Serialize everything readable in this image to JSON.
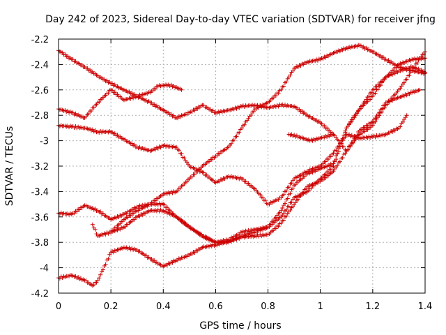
{
  "chart_data": {
    "type": "scatter",
    "title": "Day 242 of 2023, Sidereal Day-to-day VTEC variation (SDTVAR) for receiver jfng",
    "xlabel": "GPS time / hours",
    "ylabel": "SDTVAR / TECUs",
    "xlim": [
      0,
      1.4
    ],
    "ylim": [
      -4.2,
      -2.2
    ],
    "x_ticks": [
      0,
      0.2,
      0.4,
      0.6,
      0.8,
      1,
      1.2,
      1.4
    ],
    "x_tick_labels": [
      "0",
      "0.2",
      "0.4",
      "0.6",
      "0.8",
      "1",
      "1.2",
      "1.4"
    ],
    "y_ticks": [
      -4.2,
      -4,
      -3.8,
      -3.6,
      -3.4,
      -3.2,
      -3,
      -2.8,
      -2.6,
      -2.4,
      -2.2
    ],
    "y_tick_labels": [
      "-4.2",
      "-4",
      "-3.8",
      "-3.6",
      "-3.4",
      "-3.2",
      "-3",
      "-2.8",
      "-2.6",
      "-2.4",
      "-2.2"
    ],
    "grid": true,
    "marker": "+",
    "marker_color": "#cc0000",
    "series": [
      {
        "values": [
          [
            0,
            -2.29
          ],
          [
            0.05,
            -2.36
          ],
          [
            0.1,
            -2.42
          ],
          [
            0.15,
            -2.49
          ],
          [
            0.2,
            -2.55
          ],
          [
            0.25,
            -2.6
          ],
          [
            0.3,
            -2.65
          ],
          [
            0.35,
            -2.7
          ],
          [
            0.4,
            -2.76
          ],
          [
            0.45,
            -2.82
          ],
          [
            0.5,
            -2.78
          ],
          [
            0.55,
            -2.72
          ],
          [
            0.6,
            -2.78
          ],
          [
            0.65,
            -2.76
          ],
          [
            0.7,
            -2.73
          ],
          [
            0.75,
            -2.72
          ],
          [
            0.8,
            -2.74
          ],
          [
            0.85,
            -2.72
          ],
          [
            0.9,
            -2.73
          ],
          [
            0.95,
            -2.8
          ],
          [
            1.0,
            -2.86
          ],
          [
            1.05,
            -2.95
          ],
          [
            1.1,
            -3.08
          ],
          [
            1.15,
            -2.95
          ],
          [
            1.2,
            -2.88
          ],
          [
            1.25,
            -2.72
          ],
          [
            1.3,
            -2.6
          ],
          [
            1.35,
            -2.45
          ],
          [
            1.38,
            -2.35
          ],
          [
            1.4,
            -2.3
          ]
        ]
      },
      {
        "values": [
          [
            0.0,
            -2.75
          ],
          [
            0.05,
            -2.78
          ],
          [
            0.1,
            -2.82
          ],
          [
            0.15,
            -2.7
          ],
          [
            0.2,
            -2.6
          ],
          [
            0.25,
            -2.68
          ],
          [
            0.3,
            -2.65
          ],
          [
            0.35,
            -2.62
          ],
          [
            0.38,
            -2.57
          ],
          [
            0.42,
            -2.56
          ],
          [
            0.45,
            -2.58
          ],
          [
            0.47,
            -2.6
          ]
        ]
      },
      {
        "values": [
          [
            0.0,
            -2.88
          ],
          [
            0.05,
            -2.89
          ],
          [
            0.1,
            -2.9
          ],
          [
            0.15,
            -2.93
          ],
          [
            0.2,
            -2.93
          ],
          [
            0.25,
            -2.99
          ],
          [
            0.3,
            -3.05
          ],
          [
            0.35,
            -3.08
          ],
          [
            0.4,
            -3.04
          ],
          [
            0.45,
            -3.05
          ],
          [
            0.5,
            -3.2
          ],
          [
            0.55,
            -3.25
          ],
          [
            0.6,
            -3.33
          ],
          [
            0.65,
            -3.28
          ],
          [
            0.7,
            -3.3
          ],
          [
            0.75,
            -3.38
          ],
          [
            0.8,
            -3.5
          ],
          [
            0.85,
            -3.45
          ],
          [
            0.9,
            -3.3
          ],
          [
            0.95,
            -3.24
          ],
          [
            1.0,
            -3.2
          ],
          [
            1.05,
            -3.1
          ],
          [
            1.1,
            -2.95
          ],
          [
            1.15,
            -2.98
          ],
          [
            1.2,
            -2.97
          ],
          [
            1.25,
            -2.95
          ],
          [
            1.3,
            -2.9
          ],
          [
            1.33,
            -2.8
          ]
        ]
      },
      {
        "values": [
          [
            0.0,
            -3.57
          ],
          [
            0.05,
            -3.58
          ],
          [
            0.1,
            -3.51
          ],
          [
            0.15,
            -3.55
          ],
          [
            0.2,
            -3.62
          ],
          [
            0.25,
            -3.58
          ],
          [
            0.3,
            -3.52
          ],
          [
            0.35,
            -3.5
          ],
          [
            0.4,
            -3.5
          ],
          [
            0.45,
            -3.6
          ],
          [
            0.5,
            -3.68
          ],
          [
            0.55,
            -3.75
          ],
          [
            0.6,
            -3.8
          ],
          [
            0.65,
            -3.78
          ],
          [
            0.7,
            -3.72
          ],
          [
            0.75,
            -3.7
          ],
          [
            0.8,
            -3.68
          ],
          [
            0.85,
            -3.6
          ],
          [
            0.9,
            -3.45
          ],
          [
            0.95,
            -3.4
          ],
          [
            1.0,
            -3.3
          ],
          [
            1.05,
            -3.2
          ],
          [
            1.1,
            -2.9
          ],
          [
            1.15,
            -2.75
          ],
          [
            1.2,
            -2.65
          ],
          [
            1.25,
            -2.5
          ],
          [
            1.3,
            -2.45
          ],
          [
            1.35,
            -2.42
          ],
          [
            1.4,
            -2.46
          ]
        ]
      },
      {
        "values": [
          [
            0.0,
            -4.08
          ],
          [
            0.05,
            -4.06
          ],
          [
            0.1,
            -4.1
          ],
          [
            0.13,
            -4.14
          ],
          [
            0.15,
            -4.1
          ],
          [
            0.2,
            -3.88
          ],
          [
            0.25,
            -3.84
          ],
          [
            0.3,
            -3.86
          ],
          [
            0.35,
            -3.93
          ],
          [
            0.4,
            -3.99
          ],
          [
            0.45,
            -3.94
          ],
          [
            0.5,
            -3.9
          ],
          [
            0.55,
            -3.84
          ],
          [
            0.6,
            -3.82
          ],
          [
            0.65,
            -3.79
          ],
          [
            0.7,
            -3.76
          ],
          [
            0.75,
            -3.75
          ],
          [
            0.8,
            -3.74
          ],
          [
            0.85,
            -3.65
          ],
          [
            0.9,
            -3.5
          ],
          [
            0.95,
            -3.36
          ],
          [
            1.0,
            -3.32
          ],
          [
            1.05,
            -3.24
          ],
          [
            1.1,
            -3.08
          ],
          [
            1.15,
            -2.92
          ],
          [
            1.2,
            -2.85
          ],
          [
            1.25,
            -2.7
          ],
          [
            1.3,
            -2.66
          ],
          [
            1.35,
            -2.62
          ],
          [
            1.38,
            -2.6
          ]
        ]
      },
      {
        "values": [
          [
            0.13,
            -3.66
          ],
          [
            0.15,
            -3.75
          ],
          [
            0.2,
            -3.72
          ],
          [
            0.25,
            -3.62
          ],
          [
            0.3,
            -3.55
          ],
          [
            0.35,
            -3.5
          ],
          [
            0.4,
            -3.42
          ],
          [
            0.45,
            -3.4
          ],
          [
            0.5,
            -3.3
          ],
          [
            0.55,
            -3.2
          ],
          [
            0.6,
            -3.12
          ],
          [
            0.65,
            -3.05
          ],
          [
            0.7,
            -2.9
          ],
          [
            0.75,
            -2.75
          ],
          [
            0.8,
            -2.7
          ],
          [
            0.85,
            -2.6
          ],
          [
            0.9,
            -2.43
          ],
          [
            0.95,
            -2.38
          ],
          [
            1.0,
            -2.36
          ],
          [
            1.05,
            -2.31
          ],
          [
            1.1,
            -2.27
          ],
          [
            1.15,
            -2.25
          ],
          [
            1.2,
            -2.3
          ],
          [
            1.25,
            -2.36
          ],
          [
            1.3,
            -2.42
          ],
          [
            1.35,
            -2.45
          ],
          [
            1.4,
            -2.47
          ]
        ]
      },
      {
        "values": [
          [
            0.88,
            -2.95
          ],
          [
            0.92,
            -2.97
          ],
          [
            0.96,
            -3.0
          ],
          [
            1.0,
            -2.98
          ],
          [
            1.05,
            -2.95
          ]
        ]
      },
      {
        "values": [
          [
            0.2,
            -3.72
          ],
          [
            0.25,
            -3.68
          ],
          [
            0.3,
            -3.6
          ],
          [
            0.35,
            -3.55
          ],
          [
            0.4,
            -3.55
          ],
          [
            0.45,
            -3.6
          ],
          [
            0.5,
            -3.68
          ],
          [
            0.55,
            -3.75
          ],
          [
            0.6,
            -3.8
          ],
          [
            0.65,
            -3.8
          ],
          [
            0.7,
            -3.75
          ],
          [
            0.75,
            -3.72
          ],
          [
            0.8,
            -3.68
          ],
          [
            0.85,
            -3.55
          ],
          [
            0.9,
            -3.35
          ],
          [
            0.95,
            -3.26
          ],
          [
            1.0,
            -3.22
          ],
          [
            1.05,
            -3.18
          ],
          [
            1.1,
            -2.9
          ],
          [
            1.15,
            -2.75
          ],
          [
            1.2,
            -2.6
          ],
          [
            1.25,
            -2.5
          ],
          [
            1.3,
            -2.4
          ],
          [
            1.35,
            -2.36
          ],
          [
            1.4,
            -2.35
          ]
        ]
      }
    ]
  }
}
